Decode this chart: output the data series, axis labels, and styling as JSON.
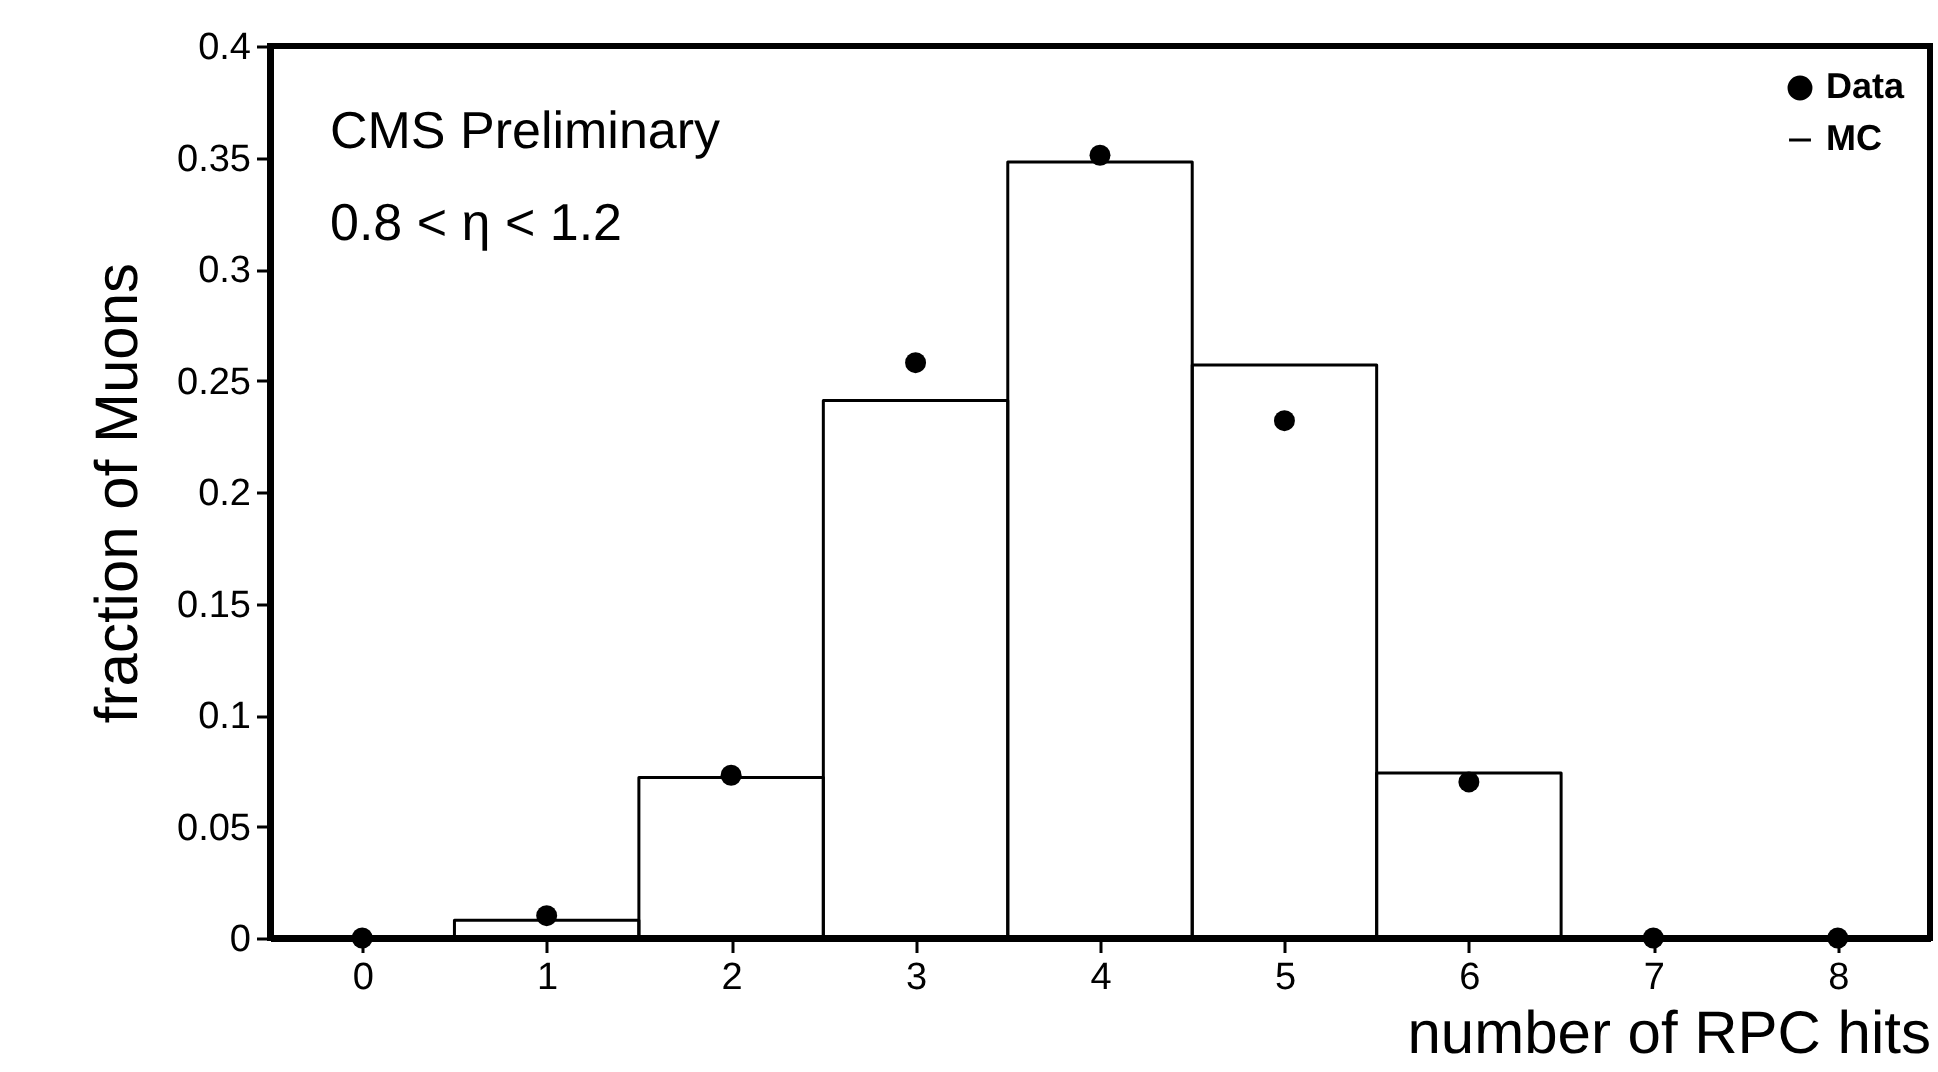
{
  "chart_data": {
    "type": "histogram",
    "xlabel": "number of RPC hits",
    "ylabel": "fraction of Muons",
    "annotations": [
      "CMS Preliminary",
      "0.8 < η < 1.2"
    ],
    "xlim": [
      -0.5,
      8.5
    ],
    "xticks": [
      0,
      1,
      2,
      3,
      4,
      5,
      6,
      7,
      8
    ],
    "ylim": [
      0,
      0.4
    ],
    "yticks": [
      0,
      0.05,
      0.1,
      0.15,
      0.2,
      0.25,
      0.3,
      0.35,
      0.4
    ],
    "grid": false,
    "legend": "top right",
    "series": [
      {
        "name": "Data",
        "type": "scatter",
        "marker": "circle",
        "color": "#000000",
        "x": [
          0,
          1,
          2,
          3,
          4,
          5,
          6,
          7,
          8
        ],
        "values": [
          0,
          0.01,
          0.073,
          0.258,
          0.351,
          0.232,
          0.07,
          0,
          0
        ]
      },
      {
        "name": "MC",
        "type": "histogram",
        "color": "#000000",
        "bins": [
          -0.5,
          0.5,
          1.5,
          2.5,
          3.5,
          4.5,
          5.5,
          6.5,
          7.5,
          8.5
        ],
        "values": [
          0,
          0.008,
          0.072,
          0.241,
          0.348,
          0.257,
          0.074,
          0,
          0
        ]
      }
    ]
  }
}
